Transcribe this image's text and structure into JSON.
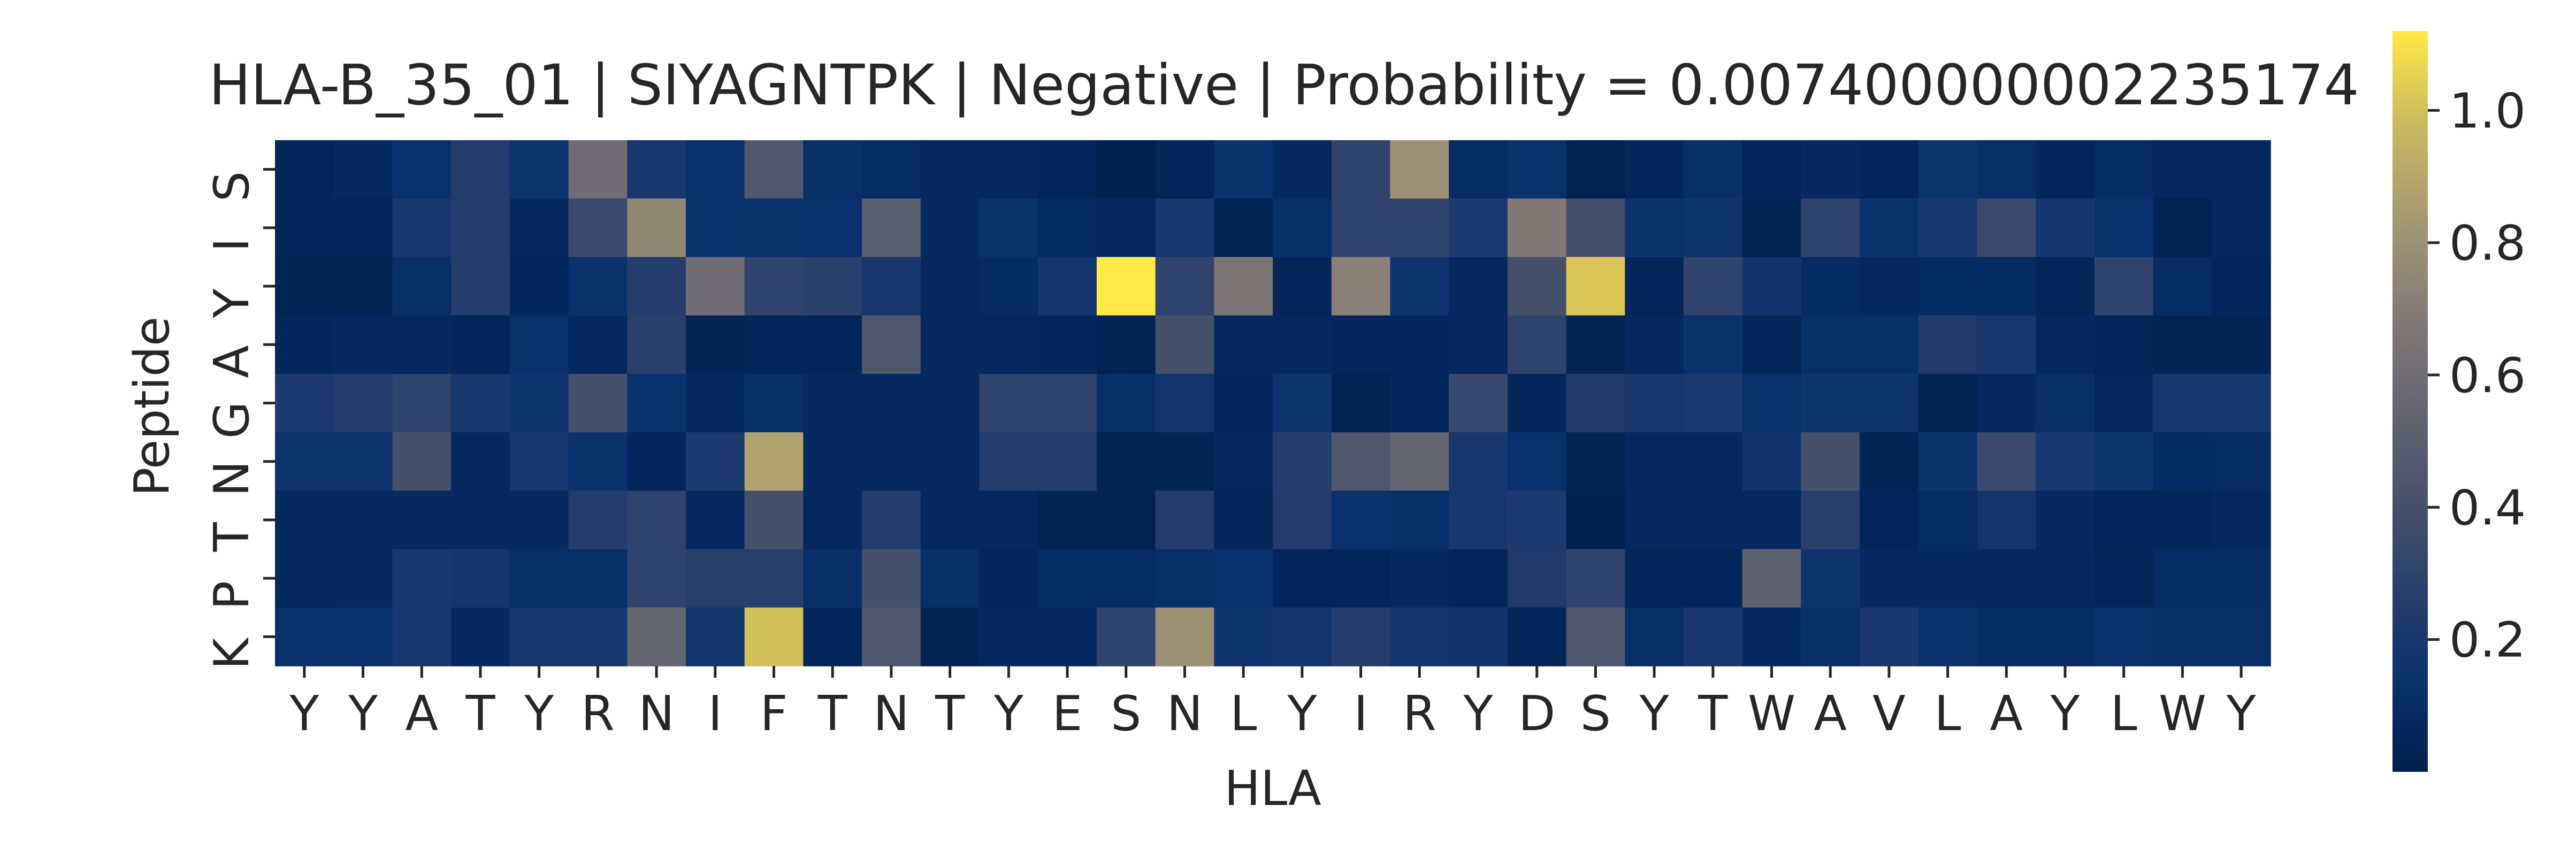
{
  "chart_data": {
    "type": "heatmap",
    "title": "HLA-B_35_01 | SIYAGNTPK | Negative | Probability = 0.007400000002235174",
    "xlabel": "HLA",
    "ylabel": "Peptide",
    "x_tick_labels": [
      "Y",
      "Y",
      "A",
      "T",
      "Y",
      "R",
      "N",
      "I",
      "F",
      "T",
      "N",
      "T",
      "Y",
      "E",
      "S",
      "N",
      "L",
      "Y",
      "I",
      "R",
      "Y",
      "D",
      "S",
      "Y",
      "T",
      "W",
      "A",
      "V",
      "L",
      "A",
      "Y",
      "L",
      "W",
      "Y"
    ],
    "y_tick_labels": [
      "S",
      "I",
      "Y",
      "A",
      "G",
      "N",
      "T",
      "P",
      "K"
    ],
    "colorbar": {
      "range": [
        0.0,
        1.12
      ],
      "ticks": [
        0.2,
        0.4,
        0.6,
        0.8,
        1.0
      ],
      "tick_labels": [
        "0.2",
        "0.4",
        "0.6",
        "0.8",
        "1.0"
      ],
      "colormap": "cividis"
    },
    "values": [
      [
        0.05,
        0.08,
        0.14,
        0.25,
        0.16,
        0.6,
        0.2,
        0.13,
        0.45,
        0.12,
        0.1,
        0.07,
        0.07,
        0.05,
        0.01,
        0.05,
        0.15,
        0.08,
        0.3,
        0.8,
        0.1,
        0.14,
        0.02,
        0.06,
        0.12,
        0.05,
        0.08,
        0.06,
        0.16,
        0.11,
        0.06,
        0.1,
        0.07,
        0.07
      ],
      [
        0.05,
        0.05,
        0.2,
        0.25,
        0.08,
        0.35,
        0.75,
        0.14,
        0.15,
        0.14,
        0.5,
        0.08,
        0.15,
        0.09,
        0.07,
        0.2,
        0.04,
        0.12,
        0.3,
        0.3,
        0.22,
        0.68,
        0.4,
        0.15,
        0.16,
        0.03,
        0.3,
        0.15,
        0.2,
        0.35,
        0.19,
        0.13,
        0.03,
        0.07
      ],
      [
        0.04,
        0.04,
        0.12,
        0.25,
        0.06,
        0.15,
        0.25,
        0.6,
        0.3,
        0.28,
        0.2,
        0.07,
        0.09,
        0.18,
        1.12,
        0.3,
        0.65,
        0.05,
        0.72,
        0.16,
        0.07,
        0.4,
        1.02,
        0.05,
        0.3,
        0.17,
        0.09,
        0.07,
        0.09,
        0.09,
        0.05,
        0.3,
        0.1,
        0.06
      ],
      [
        0.06,
        0.07,
        0.07,
        0.05,
        0.14,
        0.07,
        0.28,
        0.04,
        0.06,
        0.06,
        0.45,
        0.07,
        0.07,
        0.06,
        0.02,
        0.4,
        0.07,
        0.07,
        0.06,
        0.06,
        0.07,
        0.3,
        0.03,
        0.07,
        0.15,
        0.05,
        0.12,
        0.12,
        0.23,
        0.2,
        0.07,
        0.05,
        0.04,
        0.04
      ],
      [
        0.22,
        0.24,
        0.3,
        0.2,
        0.16,
        0.4,
        0.14,
        0.07,
        0.12,
        0.08,
        0.08,
        0.08,
        0.3,
        0.3,
        0.12,
        0.18,
        0.06,
        0.16,
        0.03,
        0.06,
        0.34,
        0.05,
        0.23,
        0.2,
        0.22,
        0.13,
        0.16,
        0.16,
        0.03,
        0.08,
        0.11,
        0.07,
        0.2,
        0.2
      ],
      [
        0.16,
        0.16,
        0.4,
        0.07,
        0.2,
        0.15,
        0.06,
        0.22,
        0.88,
        0.08,
        0.07,
        0.07,
        0.25,
        0.25,
        0.04,
        0.04,
        0.07,
        0.25,
        0.45,
        0.55,
        0.2,
        0.13,
        0.03,
        0.07,
        0.07,
        0.17,
        0.4,
        0.04,
        0.15,
        0.35,
        0.2,
        0.16,
        0.09,
        0.1
      ],
      [
        0.07,
        0.07,
        0.08,
        0.08,
        0.08,
        0.25,
        0.3,
        0.08,
        0.4,
        0.07,
        0.25,
        0.07,
        0.07,
        0.04,
        0.02,
        0.24,
        0.05,
        0.24,
        0.14,
        0.12,
        0.2,
        0.22,
        0.01,
        0.07,
        0.07,
        0.07,
        0.27,
        0.06,
        0.1,
        0.18,
        0.08,
        0.05,
        0.05,
        0.07
      ],
      [
        0.07,
        0.08,
        0.2,
        0.18,
        0.12,
        0.12,
        0.3,
        0.28,
        0.27,
        0.12,
        0.4,
        0.12,
        0.06,
        0.1,
        0.1,
        0.12,
        0.14,
        0.06,
        0.06,
        0.08,
        0.06,
        0.23,
        0.3,
        0.05,
        0.06,
        0.52,
        0.16,
        0.08,
        0.08,
        0.08,
        0.08,
        0.06,
        0.1,
        0.1
      ],
      [
        0.14,
        0.14,
        0.2,
        0.08,
        0.2,
        0.2,
        0.55,
        0.18,
        1.0,
        0.06,
        0.45,
        0.04,
        0.08,
        0.08,
        0.3,
        0.8,
        0.16,
        0.18,
        0.25,
        0.18,
        0.17,
        0.05,
        0.45,
        0.12,
        0.2,
        0.08,
        0.12,
        0.2,
        0.14,
        0.1,
        0.1,
        0.14,
        0.12,
        0.12
      ]
    ]
  }
}
